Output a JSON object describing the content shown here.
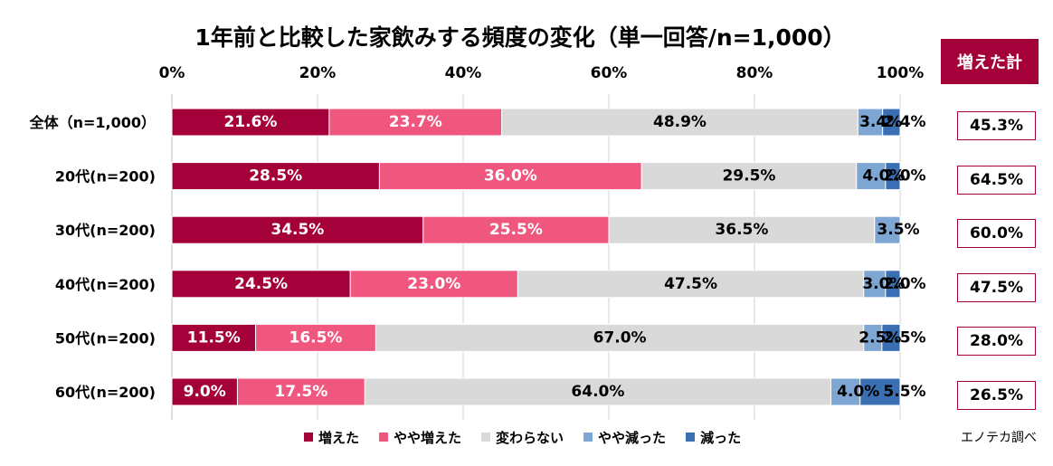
{
  "title": "1年前と比較した家飲みする頻度の変化（単一回答/n=1,000）",
  "sum_header": "増えた計",
  "source": "エノテカ調べ",
  "colors": {
    "increased": "#a4013a",
    "somewhat_increased": "#f0577f",
    "unchanged": "#d9d9d9",
    "somewhat_decreased": "#7ea6d3",
    "decreased": "#3a6fb4",
    "sum_border": "#a4013a"
  },
  "chart_data": {
    "type": "bar",
    "orientation": "horizontal",
    "stacked": true,
    "percent": true,
    "title": "1年前と比較した家飲みする頻度の変化（単一回答/n=1,000）",
    "xlim": [
      0,
      100
    ],
    "x_ticks": [
      "0%",
      "20%",
      "40%",
      "60%",
      "80%",
      "100%"
    ],
    "grid": true,
    "legend_position": "bottom",
    "categories": [
      "全体（n=1,000）",
      "20代(n=200)",
      "30代(n=200)",
      "40代(n=200)",
      "50代(n=200)",
      "60代(n=200)"
    ],
    "series": [
      {
        "name": "増えた",
        "values": [
          21.6,
          28.5,
          34.5,
          24.5,
          11.5,
          9.0
        ],
        "labels": [
          "21.6%",
          "28.5%",
          "34.5%",
          "24.5%",
          "11.5%",
          "9.0%"
        ]
      },
      {
        "name": "やや増えた",
        "values": [
          23.7,
          36.0,
          25.5,
          23.0,
          16.5,
          17.5
        ],
        "labels": [
          "23.7%",
          "36.0%",
          "25.5%",
          "23.0%",
          "16.5%",
          "17.5%"
        ]
      },
      {
        "name": "変わらない",
        "values": [
          48.9,
          29.5,
          36.5,
          47.5,
          67.0,
          64.0
        ],
        "labels": [
          "48.9%",
          "29.5%",
          "36.5%",
          "47.5%",
          "67.0%",
          "64.0%"
        ]
      },
      {
        "name": "やや減った",
        "values": [
          3.4,
          4.0,
          3.5,
          3.0,
          2.5,
          4.0
        ],
        "labels": [
          "3.4%",
          "4.0%",
          "3.5%",
          "3.0%",
          "2.5%",
          "4.0%"
        ]
      },
      {
        "name": "減った",
        "values": [
          2.4,
          2.0,
          0,
          2.0,
          2.5,
          5.5
        ],
        "labels": [
          "2.4%",
          "2.0%",
          "",
          "2.0%",
          "2.5%",
          "5.5%"
        ]
      }
    ],
    "increased_total": [
      "45.3%",
      "64.5%",
      "60.0%",
      "47.5%",
      "28.0%",
      "26.5%"
    ]
  }
}
